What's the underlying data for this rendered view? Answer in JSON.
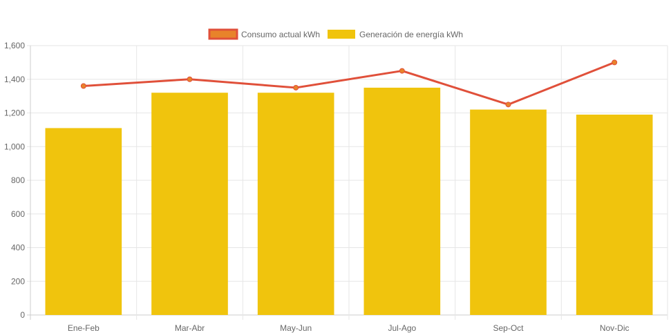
{
  "chart_data": {
    "type": "bar",
    "categories": [
      "Ene-Feb",
      "Mar-Abr",
      "May-Jun",
      "Jul-Ago",
      "Sep-Oct",
      "Nov-Dic"
    ],
    "series": [
      {
        "name": "Consumo actual kWh",
        "type": "line",
        "values": [
          1360,
          1400,
          1350,
          1450,
          1250,
          1500
        ],
        "color": "#e0503a",
        "point_color": "#e8832a"
      },
      {
        "name": "Generación de energía kWh",
        "type": "bar",
        "values": [
          1110,
          1320,
          1320,
          1350,
          1220,
          1190
        ],
        "color": "#f0c40d"
      }
    ],
    "ylim": [
      0,
      1600
    ],
    "yticks": [
      "0",
      "200",
      "400",
      "600",
      "800",
      "1,000",
      "1,200",
      "1,400",
      "1,600"
    ],
    "legend_position": "top",
    "grid": true
  }
}
